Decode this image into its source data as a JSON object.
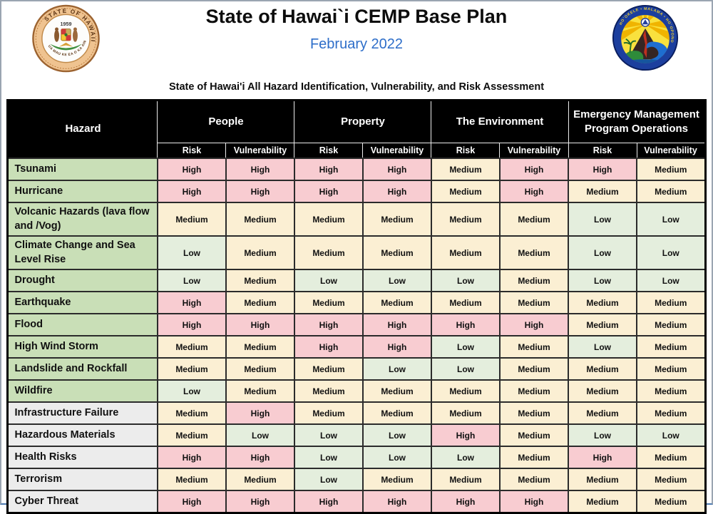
{
  "header": {
    "title": "State of Hawai`i CEMP Base Plan",
    "date": "February 2022",
    "left_seal": {
      "name": "state-of-hawaii-seal",
      "ring_text_top": "STATE OF HAWAII",
      "year": "1959"
    },
    "right_seal": {
      "name": "hawaii-emergency-management-agency-seal",
      "ring_text_top": "HO`OKELE • MALAMA • HO`OPONO",
      "ring_text_bottom": "HAWAII EMERGENCY MANAGEMENT AGENCY"
    }
  },
  "assessment_title": "State of Hawai'i All Hazard Identification, Vulnerability, and Risk Assessment",
  "table": {
    "hazard_header": "Hazard",
    "groups": [
      "People",
      "Property",
      "The Environment",
      "Emergency Management Program Operations"
    ],
    "sub_headers": [
      "Risk",
      "Vulnerability"
    ],
    "rows": [
      {
        "hazard": "Tsunami",
        "group": "natural",
        "values": [
          "High",
          "High",
          "High",
          "High",
          "Medium",
          "High",
          "High",
          "Medium"
        ]
      },
      {
        "hazard": "Hurricane",
        "group": "natural",
        "values": [
          "High",
          "High",
          "High",
          "High",
          "Medium",
          "High",
          "Medium",
          "Medium"
        ]
      },
      {
        "hazard": "Volcanic Hazards (lava flow and /Vog)",
        "group": "natural",
        "values": [
          "Medium",
          "Medium",
          "Medium",
          "Medium",
          "Medium",
          "Medium",
          "Low",
          "Low"
        ]
      },
      {
        "hazard": "Climate Change and Sea Level Rise",
        "group": "natural",
        "values": [
          "Low",
          "Medium",
          "Medium",
          "Medium",
          "Medium",
          "Medium",
          "Low",
          "Low"
        ]
      },
      {
        "hazard": "Drought",
        "group": "natural",
        "values": [
          "Low",
          "Medium",
          "Low",
          "Low",
          "Low",
          "Medium",
          "Low",
          "Low"
        ]
      },
      {
        "hazard": "Earthquake",
        "group": "natural",
        "values": [
          "High",
          "Medium",
          "Medium",
          "Medium",
          "Medium",
          "Medium",
          "Medium",
          "Medium"
        ]
      },
      {
        "hazard": "Flood",
        "group": "natural",
        "values": [
          "High",
          "High",
          "High",
          "High",
          "High",
          "High",
          "Medium",
          "Medium"
        ]
      },
      {
        "hazard": "High Wind Storm",
        "group": "natural",
        "values": [
          "Medium",
          "Medium",
          "High",
          "High",
          "Low",
          "Medium",
          "Low",
          "Medium"
        ]
      },
      {
        "hazard": "Landslide and Rockfall",
        "group": "natural",
        "values": [
          "Medium",
          "Medium",
          "Medium",
          "Low",
          "Low",
          "Medium",
          "Medium",
          "Medium"
        ]
      },
      {
        "hazard": "Wildfire",
        "group": "natural",
        "values": [
          "Low",
          "Medium",
          "Medium",
          "Medium",
          "Medium",
          "Medium",
          "Medium",
          "Medium"
        ]
      },
      {
        "hazard": "Infrastructure Failure",
        "group": "other",
        "values": [
          "Medium",
          "High",
          "Medium",
          "Medium",
          "Medium",
          "Medium",
          "Medium",
          "Medium"
        ]
      },
      {
        "hazard": "Hazardous Materials",
        "group": "other",
        "values": [
          "Medium",
          "Low",
          "Low",
          "Low",
          "High",
          "Medium",
          "Low",
          "Low"
        ]
      },
      {
        "hazard": "Health Risks",
        "group": "other",
        "values": [
          "High",
          "High",
          "Low",
          "Low",
          "Low",
          "Medium",
          "High",
          "Medium"
        ]
      },
      {
        "hazard": "Terrorism",
        "group": "other",
        "values": [
          "Medium",
          "Medium",
          "Low",
          "Medium",
          "Medium",
          "Medium",
          "Medium",
          "Medium"
        ]
      },
      {
        "hazard": "Cyber Threat",
        "group": "other",
        "values": [
          "High",
          "High",
          "High",
          "High",
          "High",
          "High",
          "Medium",
          "Medium"
        ]
      }
    ]
  },
  "colors": {
    "high_bg": "#f8ccd1",
    "medium_bg": "#fbefd3",
    "low_bg": "#e4eedd",
    "hazard_natural_bg": "#c9dfb7",
    "hazard_other_bg": "#ececec",
    "header_bg": "#000000",
    "header_text": "#ffffff",
    "date_text": "#2e6ec9"
  }
}
